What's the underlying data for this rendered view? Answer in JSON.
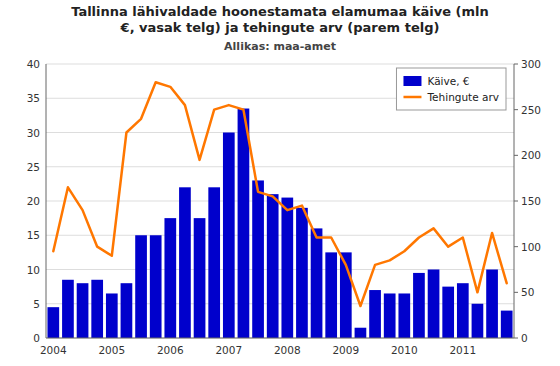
{
  "chart_data": {
    "type": "bar",
    "title": "Tallinna lähivaldade hoonestamata elamumaa käive (mln\n€, vasak telg) ja tehingute arv (parem telg)",
    "subtitle": "Allikas: maa-amet",
    "categories": [
      "2004",
      null,
      null,
      null,
      "2005",
      null,
      null,
      null,
      "2006",
      null,
      null,
      null,
      "2007",
      null,
      null,
      null,
      "2008",
      null,
      null,
      null,
      "2009",
      null,
      null,
      null,
      "2010",
      null,
      null,
      null,
      "2011",
      null,
      null,
      null
    ],
    "series": [
      {
        "name": "Käive, €",
        "type": "bar",
        "color": "#0000CC",
        "values": [
          4.5,
          8.5,
          8.0,
          8.5,
          6.5,
          8.0,
          15.0,
          15.0,
          17.5,
          22.0,
          17.5,
          22.0,
          30.0,
          33.5,
          23.0,
          21.0,
          20.5,
          19.0,
          16.0,
          12.5,
          12.5,
          1.5,
          7.0,
          6.5,
          6.5,
          9.5,
          10.0,
          7.5,
          8.0,
          5.0,
          10.0,
          4.0
        ]
      },
      {
        "name": "Tehingute arv",
        "type": "line",
        "color": "#FF7700",
        "axis": "y2",
        "values": [
          95,
          165,
          140,
          100,
          90,
          225,
          240,
          280,
          275,
          255,
          195,
          250,
          255,
          250,
          160,
          155,
          140,
          145,
          110,
          110,
          80,
          35,
          80,
          85,
          95,
          110,
          120,
          100,
          110,
          50,
          115,
          60
        ]
      }
    ],
    "ylim": [
      0,
      40
    ],
    "yticks": [
      0,
      5,
      10,
      15,
      20,
      25,
      30,
      35,
      40
    ],
    "y2lim": [
      0,
      300
    ],
    "y2ticks": [
      0,
      50,
      100,
      150,
      200,
      250,
      300
    ],
    "grid": true,
    "legend": "upper right"
  }
}
